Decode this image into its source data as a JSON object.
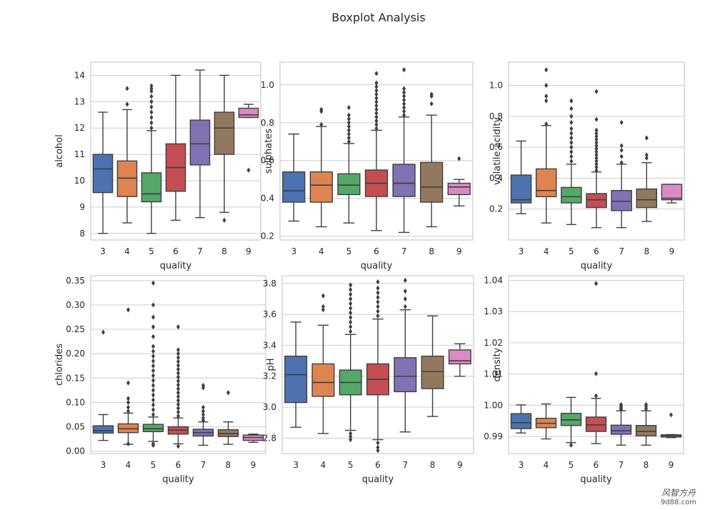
{
  "figure_title": "Boxplot Analysis",
  "watermark": {
    "line1": "风智方舟",
    "line2": "9d88.com"
  },
  "chart_data": [
    {
      "type": "box",
      "id": "alcohol",
      "xlabel": "quality",
      "ylabel": "alcohol",
      "categories": [
        "3",
        "4",
        "5",
        "6",
        "7",
        "8",
        "9"
      ],
      "ylim": [
        7.75,
        14.5
      ],
      "yticks": [
        8,
        9,
        10,
        11,
        12,
        13,
        14
      ],
      "ytick_labels": [
        "8",
        "9",
        "10",
        "11",
        "12",
        "13",
        "14"
      ],
      "boxes": [
        {
          "q1": 9.55,
          "median": 10.45,
          "q3": 11.0,
          "whislo": 8.0,
          "whishi": 12.6,
          "fliers": []
        },
        {
          "q1": 9.4,
          "median": 10.1,
          "q3": 10.75,
          "whislo": 8.4,
          "whishi": 12.7,
          "fliers": [
            12.9,
            13.5
          ]
        },
        {
          "q1": 9.2,
          "median": 9.5,
          "q3": 10.3,
          "whislo": 8.0,
          "whishi": 11.9,
          "fliers": [
            12.0,
            12.2,
            12.4,
            12.6,
            12.8,
            13.0,
            13.2,
            13.4,
            13.5,
            13.6
          ]
        },
        {
          "q1": 9.6,
          "median": 10.5,
          "q3": 11.4,
          "whislo": 8.5,
          "whishi": 14.0,
          "fliers": []
        },
        {
          "q1": 10.6,
          "median": 11.4,
          "q3": 12.3,
          "whislo": 8.6,
          "whishi": 14.2,
          "fliers": []
        },
        {
          "q1": 11.0,
          "median": 12.0,
          "q3": 12.6,
          "whislo": 8.8,
          "whishi": 14.0,
          "fliers": [
            8.5
          ]
        },
        {
          "q1": 12.4,
          "median": 12.5,
          "q3": 12.75,
          "whislo": 12.4,
          "whishi": 12.9,
          "fliers": [
            10.4
          ]
        }
      ]
    },
    {
      "type": "box",
      "id": "sulphates",
      "xlabel": "quality",
      "ylabel": "sulphates",
      "categories": [
        "3",
        "4",
        "5",
        "6",
        "7",
        "8",
        "9"
      ],
      "ylim": [
        0.18,
        1.12
      ],
      "yticks": [
        0.2,
        0.4,
        0.6,
        0.8,
        1.0
      ],
      "ytick_labels": [
        "0.2",
        "0.4",
        "0.6",
        "0.8",
        "1.0"
      ],
      "boxes": [
        {
          "q1": 0.38,
          "median": 0.44,
          "q3": 0.54,
          "whislo": 0.28,
          "whishi": 0.74,
          "fliers": []
        },
        {
          "q1": 0.38,
          "median": 0.47,
          "q3": 0.54,
          "whislo": 0.25,
          "whishi": 0.78,
          "fliers": [
            0.79,
            0.86,
            0.87
          ]
        },
        {
          "q1": 0.42,
          "median": 0.47,
          "q3": 0.53,
          "whislo": 0.27,
          "whishi": 0.69,
          "fliers": [
            0.7,
            0.72,
            0.74,
            0.76,
            0.78,
            0.8,
            0.82,
            0.84,
            0.88
          ]
        },
        {
          "q1": 0.41,
          "median": 0.48,
          "q3": 0.55,
          "whislo": 0.23,
          "whishi": 0.76,
          "fliers": [
            0.77,
            0.79,
            0.81,
            0.83,
            0.85,
            0.87,
            0.89,
            0.91,
            0.93,
            0.95,
            0.97,
            0.99,
            1.01,
            1.06
          ]
        },
        {
          "q1": 0.41,
          "median": 0.48,
          "q3": 0.58,
          "whislo": 0.22,
          "whishi": 0.83,
          "fliers": [
            0.84,
            0.86,
            0.88,
            0.9,
            0.92,
            0.94,
            0.96,
            0.98,
            1.08
          ]
        },
        {
          "q1": 0.38,
          "median": 0.46,
          "q3": 0.59,
          "whislo": 0.25,
          "whishi": 0.84,
          "fliers": [
            0.9,
            0.94,
            0.95
          ]
        },
        {
          "q1": 0.42,
          "median": 0.46,
          "q3": 0.48,
          "whislo": 0.36,
          "whishi": 0.5,
          "fliers": [
            0.61
          ]
        }
      ]
    },
    {
      "type": "box",
      "id": "volatile",
      "xlabel": "quality",
      "ylabel": "volatile acidity",
      "categories": [
        "3",
        "4",
        "5",
        "6",
        "7",
        "8",
        "9"
      ],
      "ylim": [
        0.0,
        1.15
      ],
      "yticks": [
        0.2,
        0.4,
        0.6,
        0.8,
        1.0
      ],
      "ytick_labels": [
        "0.2",
        "0.4",
        "0.6",
        "0.8",
        "1.0"
      ],
      "boxes": [
        {
          "q1": 0.24,
          "median": 0.26,
          "q3": 0.42,
          "whislo": 0.17,
          "whishi": 0.64,
          "fliers": []
        },
        {
          "q1": 0.28,
          "median": 0.32,
          "q3": 0.46,
          "whislo": 0.11,
          "whishi": 0.74,
          "fliers": [
            0.75,
            0.9,
            0.93,
            1.0,
            1.1
          ]
        },
        {
          "q1": 0.24,
          "median": 0.28,
          "q3": 0.34,
          "whislo": 0.1,
          "whishi": 0.49,
          "fliers": [
            0.51,
            0.54,
            0.57,
            0.6,
            0.63,
            0.66,
            0.69,
            0.72,
            0.76,
            0.8,
            0.85,
            0.9
          ]
        },
        {
          "q1": 0.21,
          "median": 0.26,
          "q3": 0.3,
          "whislo": 0.08,
          "whishi": 0.44,
          "fliers": [
            0.45,
            0.47,
            0.49,
            0.51,
            0.53,
            0.55,
            0.57,
            0.59,
            0.61,
            0.63,
            0.65,
            0.67,
            0.69,
            0.71,
            0.78,
            0.96
          ]
        },
        {
          "q1": 0.19,
          "median": 0.25,
          "q3": 0.32,
          "whislo": 0.08,
          "whishi": 0.49,
          "fliers": [
            0.5,
            0.54,
            0.58,
            0.61,
            0.76
          ]
        },
        {
          "q1": 0.21,
          "median": 0.26,
          "q3": 0.33,
          "whislo": 0.12,
          "whishi": 0.5,
          "fliers": [
            0.53,
            0.55,
            0.66
          ]
        },
        {
          "q1": 0.26,
          "median": 0.27,
          "q3": 0.36,
          "whislo": 0.24,
          "whishi": 0.36,
          "fliers": []
        }
      ]
    },
    {
      "type": "box",
      "id": "chlorides",
      "xlabel": "quality",
      "ylabel": "chlorides",
      "categories": [
        "3",
        "4",
        "5",
        "6",
        "7",
        "8",
        "9"
      ],
      "ylim": [
        -0.005,
        0.36
      ],
      "yticks": [
        0.0,
        0.05,
        0.1,
        0.15,
        0.2,
        0.25,
        0.3,
        0.35
      ],
      "ytick_labels": [
        "0.00",
        "0.05",
        "0.10",
        "0.15",
        "0.20",
        "0.25",
        "0.30",
        "0.35"
      ],
      "boxes": [
        {
          "q1": 0.037,
          "median": 0.042,
          "q3": 0.052,
          "whislo": 0.022,
          "whishi": 0.075,
          "fliers": [
            0.244
          ]
        },
        {
          "q1": 0.038,
          "median": 0.046,
          "q3": 0.056,
          "whislo": 0.014,
          "whishi": 0.078,
          "fliers": [
            0.082,
            0.09,
            0.1,
            0.108,
            0.14,
            0.29,
            0.015
          ]
        },
        {
          "q1": 0.04,
          "median": 0.046,
          "q3": 0.055,
          "whislo": 0.02,
          "whishi": 0.07,
          "fliers": [
            0.075,
            0.085,
            0.095,
            0.105,
            0.115,
            0.125,
            0.135,
            0.145,
            0.155,
            0.165,
            0.175,
            0.185,
            0.195,
            0.205,
            0.215,
            0.235,
            0.255,
            0.275,
            0.3,
            0.345,
            0.012,
            0.015
          ]
        },
        {
          "q1": 0.035,
          "median": 0.043,
          "q3": 0.05,
          "whislo": 0.015,
          "whishi": 0.068,
          "fliers": [
            0.072,
            0.08,
            0.088,
            0.096,
            0.104,
            0.112,
            0.12,
            0.128,
            0.136,
            0.144,
            0.152,
            0.16,
            0.168,
            0.176,
            0.184,
            0.192,
            0.2,
            0.208,
            0.255,
            0.01
          ]
        },
        {
          "q1": 0.031,
          "median": 0.038,
          "q3": 0.045,
          "whislo": 0.012,
          "whishi": 0.06,
          "fliers": [
            0.063,
            0.068,
            0.075,
            0.082,
            0.09,
            0.13,
            0.135
          ]
        },
        {
          "q1": 0.03,
          "median": 0.036,
          "q3": 0.044,
          "whislo": 0.014,
          "whishi": 0.06,
          "fliers": [
            0.12
          ]
        },
        {
          "q1": 0.022,
          "median": 0.028,
          "q3": 0.033,
          "whislo": 0.018,
          "whishi": 0.035,
          "fliers": []
        }
      ]
    },
    {
      "type": "box",
      "id": "ph",
      "xlabel": "quality",
      "ylabel": "pH",
      "categories": [
        "3",
        "4",
        "5",
        "6",
        "7",
        "8",
        "9"
      ],
      "ylim": [
        2.7,
        3.85
      ],
      "yticks": [
        2.8,
        3.0,
        3.2,
        3.4,
        3.6,
        3.8
      ],
      "ytick_labels": [
        "2.8",
        "3.0",
        "3.2",
        "3.4",
        "3.6",
        "3.8"
      ],
      "boxes": [
        {
          "q1": 3.03,
          "median": 3.21,
          "q3": 3.33,
          "whislo": 2.87,
          "whishi": 3.55,
          "fliers": []
        },
        {
          "q1": 3.07,
          "median": 3.16,
          "q3": 3.28,
          "whislo": 2.83,
          "whishi": 3.53,
          "fliers": [
            3.63,
            3.65,
            3.72
          ]
        },
        {
          "q1": 3.08,
          "median": 3.16,
          "q3": 3.24,
          "whislo": 2.85,
          "whishi": 3.47,
          "fliers": [
            3.49,
            3.52,
            3.55,
            3.58,
            3.61,
            3.64,
            3.67,
            3.7,
            3.73,
            3.76,
            3.79,
            2.79,
            2.81,
            2.83
          ]
        },
        {
          "q1": 3.08,
          "median": 3.18,
          "q3": 3.28,
          "whislo": 2.79,
          "whishi": 3.57,
          "fliers": [
            3.59,
            3.62,
            3.65,
            3.68,
            3.71,
            3.74,
            3.77,
            3.81,
            2.72,
            2.74,
            2.77
          ]
        },
        {
          "q1": 3.1,
          "median": 3.2,
          "q3": 3.32,
          "whislo": 2.84,
          "whishi": 3.63,
          "fliers": [
            3.65,
            3.7,
            3.75,
            3.82
          ]
        },
        {
          "q1": 3.12,
          "median": 3.23,
          "q3": 3.33,
          "whislo": 2.94,
          "whishi": 3.59,
          "fliers": []
        },
        {
          "q1": 3.28,
          "median": 3.3,
          "q3": 3.37,
          "whislo": 3.2,
          "whishi": 3.41,
          "fliers": []
        }
      ]
    },
    {
      "type": "box",
      "id": "density",
      "xlabel": "quality",
      "ylabel": "density",
      "categories": [
        "3",
        "4",
        "5",
        "6",
        "7",
        "8",
        "9"
      ],
      "ylim": [
        0.9845,
        1.0415
      ],
      "yticks": [
        0.99,
        1.0,
        1.01,
        1.02,
        1.03,
        1.04
      ],
      "ytick_labels": [
        "0.99",
        "1.00",
        "1.01",
        "1.02",
        "1.03",
        "1.04"
      ],
      "boxes": [
        {
          "q1": 0.9925,
          "median": 0.9944,
          "q3": 0.9973,
          "whislo": 0.9911,
          "whishi": 1.0001,
          "fliers": []
        },
        {
          "q1": 0.9928,
          "median": 0.9942,
          "q3": 0.9958,
          "whislo": 0.9892,
          "whishi": 1.0004,
          "fliers": []
        },
        {
          "q1": 0.9935,
          "median": 0.9953,
          "q3": 0.9974,
          "whislo": 0.988,
          "whishi": 1.0025,
          "fliers": [
            0.9872
          ]
        },
        {
          "q1": 0.9916,
          "median": 0.9937,
          "q3": 0.9962,
          "whislo": 0.9877,
          "whishi": 1.0022,
          "fliers": [
            1.003,
            1.0101,
            1.039
          ]
        },
        {
          "q1": 0.9907,
          "median": 0.9918,
          "q3": 0.9936,
          "whislo": 0.9872,
          "whishi": 0.9982,
          "fliers": [
            0.9986,
            0.999,
            0.9994,
            0.9998,
            1.0002
          ]
        },
        {
          "q1": 0.9902,
          "median": 0.9916,
          "q3": 0.9935,
          "whislo": 0.9872,
          "whishi": 0.9982,
          "fliers": [
            0.9988,
            0.9995,
            1.0002
          ]
        },
        {
          "q1": 0.9898,
          "median": 0.9902,
          "q3": 0.9905,
          "whislo": 0.9896,
          "whishi": 0.9906,
          "fliers": [
            0.9969
          ]
        }
      ]
    }
  ],
  "palette": [
    "#4c72b0",
    "#dd8452",
    "#55a868",
    "#c44e52",
    "#8172b3",
    "#937860",
    "#da8bc3"
  ],
  "colors": {
    "grid": "#cccccc",
    "frame": "#cccccc",
    "line": "#3f3f3f",
    "text": "#262626"
  }
}
